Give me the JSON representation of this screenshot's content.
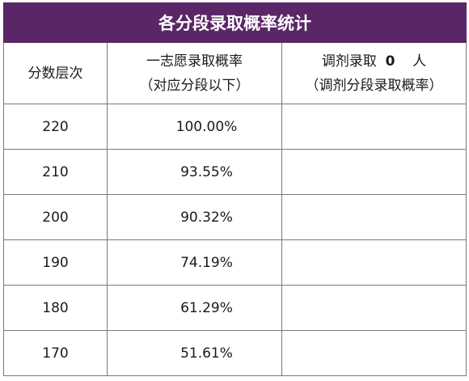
{
  "title": "各分段录取概率统计",
  "headers": {
    "score": "分数层次",
    "first_choice_line1": "一志愿录取概率",
    "first_choice_line2": "（对应分段以下）",
    "adjust_prefix": "调剂录取",
    "adjust_count": "0",
    "adjust_suffix": "人",
    "adjust_line2": "（调剂分段录取概率）"
  },
  "rows": [
    {
      "score": "220",
      "rate": "100.00%",
      "adjust": ""
    },
    {
      "score": "210",
      "rate": "93.55%",
      "adjust": ""
    },
    {
      "score": "200",
      "rate": "90.32%",
      "adjust": ""
    },
    {
      "score": "190",
      "rate": "74.19%",
      "adjust": ""
    },
    {
      "score": "180",
      "rate": "61.29%",
      "adjust": ""
    },
    {
      "score": "170",
      "rate": "51.61%",
      "adjust": ""
    }
  ]
}
